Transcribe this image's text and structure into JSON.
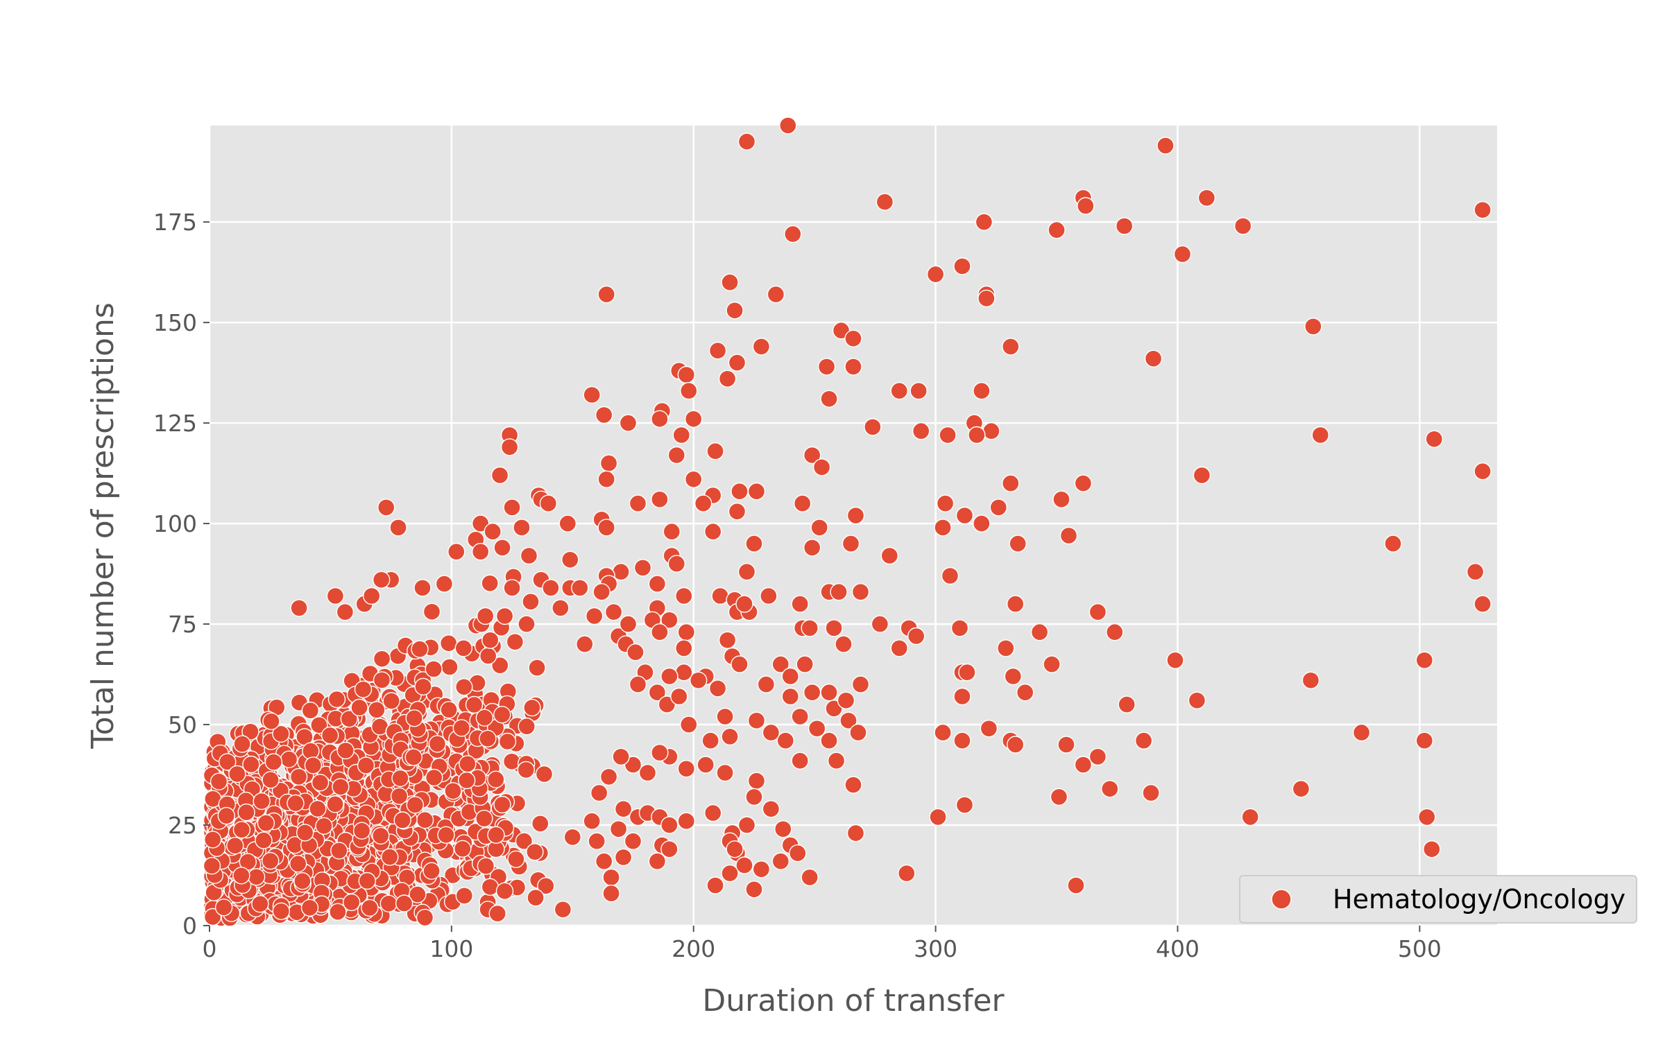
{
  "chart_data": {
    "type": "scatter",
    "xlabel": "Duration of transfer",
    "ylabel": "Total number of prescriptions",
    "xlim": [
      0,
      532
    ],
    "ylim": [
      0,
      199
    ],
    "x_ticks": [
      0,
      100,
      200,
      300,
      400,
      500
    ],
    "y_ticks": [
      0,
      25,
      50,
      75,
      100,
      125,
      150,
      175
    ],
    "grid": true,
    "legend_position": "bottom-right",
    "series": [
      {
        "name": "Hematology/Oncology",
        "color": "#E24A33",
        "points": [
          [
            222,
            195
          ],
          [
            239,
            199
          ],
          [
            395,
            194
          ],
          [
            412,
            181
          ],
          [
            361,
            181
          ],
          [
            362,
            179
          ],
          [
            378,
            174
          ],
          [
            427,
            174
          ],
          [
            350,
            173
          ],
          [
            320,
            175
          ],
          [
            241,
            172
          ],
          [
            526,
            178
          ],
          [
            279,
            180
          ],
          [
            402,
            167
          ],
          [
            311,
            164
          ],
          [
            300,
            162
          ],
          [
            215,
            160
          ],
          [
            234,
            157
          ],
          [
            164,
            157
          ],
          [
            321,
            157
          ],
          [
            321,
            156
          ],
          [
            217,
            153
          ],
          [
            456,
            149
          ],
          [
            390,
            141
          ],
          [
            261,
            148
          ],
          [
            266,
            146
          ],
          [
            228,
            144
          ],
          [
            331,
            144
          ],
          [
            210,
            143
          ],
          [
            218,
            140
          ],
          [
            255,
            139
          ],
          [
            266,
            139
          ],
          [
            194,
            138
          ],
          [
            197,
            137
          ],
          [
            214,
            136
          ],
          [
            285,
            133
          ],
          [
            293,
            133
          ],
          [
            319,
            133
          ],
          [
            198,
            133
          ],
          [
            158,
            132
          ],
          [
            256,
            131
          ],
          [
            163,
            127
          ],
          [
            187,
            128
          ],
          [
            186,
            126
          ],
          [
            200,
            126
          ],
          [
            173,
            125
          ],
          [
            274,
            124
          ],
          [
            294,
            123
          ],
          [
            316,
            125
          ],
          [
            323,
            123
          ],
          [
            317,
            122
          ],
          [
            305,
            122
          ],
          [
            459,
            122
          ],
          [
            506,
            121
          ],
          [
            195,
            122
          ],
          [
            124,
            122
          ],
          [
            124,
            119
          ],
          [
            209,
            118
          ],
          [
            193,
            117
          ],
          [
            249,
            117
          ],
          [
            253,
            114
          ],
          [
            165,
            115
          ],
          [
            526,
            113
          ],
          [
            410,
            112
          ],
          [
            164,
            111
          ],
          [
            200,
            111
          ],
          [
            331,
            110
          ],
          [
            361,
            110
          ],
          [
            120,
            112
          ],
          [
            226,
            108
          ],
          [
            219,
            108
          ],
          [
            208,
            107
          ],
          [
            136,
            107
          ],
          [
            137,
            106
          ],
          [
            140,
            105
          ],
          [
            177,
            105
          ],
          [
            186,
            106
          ],
          [
            245,
            105
          ],
          [
            304,
            105
          ],
          [
            352,
            106
          ],
          [
            204,
            105
          ],
          [
            73,
            104
          ],
          [
            208,
            98
          ],
          [
            326,
            104
          ],
          [
            355,
            97
          ],
          [
            218,
            103
          ],
          [
            162,
            101
          ],
          [
            148,
            100
          ],
          [
            125,
            104
          ],
          [
            112,
            100
          ],
          [
            129,
            99
          ],
          [
            267,
            102
          ],
          [
            312,
            102
          ],
          [
            319,
            100
          ],
          [
            303,
            99
          ],
          [
            252,
            99
          ],
          [
            78,
            99
          ],
          [
            191,
            98
          ],
          [
            164,
            99
          ],
          [
            117,
            98
          ],
          [
            225,
            95
          ],
          [
            249,
            94
          ],
          [
            265,
            95
          ],
          [
            334,
            95
          ],
          [
            489,
            95
          ],
          [
            110,
            96
          ],
          [
            112,
            93
          ],
          [
            102,
            93
          ],
          [
            132,
            92
          ],
          [
            149,
            91
          ],
          [
            191,
            92
          ],
          [
            193,
            90
          ],
          [
            281,
            92
          ],
          [
            121,
            94
          ],
          [
            170,
            88
          ],
          [
            179,
            89
          ],
          [
            222,
            88
          ],
          [
            306,
            87
          ],
          [
            164,
            87
          ],
          [
            185,
            85
          ],
          [
            137,
            86
          ],
          [
            149,
            84
          ],
          [
            153,
            84
          ],
          [
            165,
            85
          ],
          [
            162,
            83
          ],
          [
            125,
            84
          ],
          [
            141,
            84
          ],
          [
            97,
            85
          ],
          [
            88,
            84
          ],
          [
            256,
            83
          ],
          [
            260,
            83
          ],
          [
            231,
            82
          ],
          [
            211,
            82
          ],
          [
            217,
            81
          ],
          [
            218,
            78
          ],
          [
            223,
            78
          ],
          [
            269,
            83
          ],
          [
            523,
            88
          ],
          [
            526,
            80
          ],
          [
            221,
            80
          ],
          [
            244,
            80
          ],
          [
            333,
            80
          ],
          [
            52,
            82
          ],
          [
            56,
            78
          ],
          [
            37,
            79
          ],
          [
            75,
            86
          ],
          [
            71,
            86
          ],
          [
            64,
            80
          ],
          [
            67,
            82
          ],
          [
            185,
            79
          ],
          [
            196,
            82
          ],
          [
            167,
            78
          ],
          [
            169,
            72
          ],
          [
            173,
            75
          ],
          [
            183,
            76
          ],
          [
            190,
            76
          ],
          [
            197,
            73
          ],
          [
            159,
            77
          ],
          [
            145,
            79
          ],
          [
            131,
            75
          ],
          [
            122,
            77
          ],
          [
            116,
            71
          ],
          [
            105,
            69
          ],
          [
            114,
            77
          ],
          [
            367,
            78
          ],
          [
            277,
            75
          ],
          [
            289,
            74
          ],
          [
            292,
            72
          ],
          [
            245,
            74
          ],
          [
            248,
            74
          ],
          [
            258,
            74
          ],
          [
            310,
            74
          ],
          [
            343,
            73
          ],
          [
            374,
            73
          ],
          [
            186,
            73
          ],
          [
            214,
            71
          ],
          [
            216,
            67
          ],
          [
            196,
            69
          ],
          [
            172,
            70
          ],
          [
            176,
            68
          ],
          [
            155,
            70
          ],
          [
            262,
            70
          ],
          [
            285,
            69
          ],
          [
            329,
            69
          ],
          [
            219,
            65
          ],
          [
            230,
            60
          ],
          [
            236,
            65
          ],
          [
            246,
            65
          ],
          [
            240,
            62
          ],
          [
            249,
            58
          ],
          [
            256,
            58
          ],
          [
            258,
            54
          ],
          [
            263,
            56
          ],
          [
            269,
            60
          ],
          [
            311,
            63
          ],
          [
            313,
            63
          ],
          [
            332,
            62
          ],
          [
            337,
            58
          ],
          [
            348,
            65
          ],
          [
            399,
            66
          ],
          [
            455,
            61
          ],
          [
            502,
            66
          ],
          [
            205,
            62
          ],
          [
            210,
            59
          ],
          [
            202,
            61
          ],
          [
            196,
            63
          ],
          [
            190,
            62
          ],
          [
            180,
            63
          ],
          [
            177,
            60
          ],
          [
            185,
            58
          ],
          [
            189,
            55
          ],
          [
            194,
            57
          ],
          [
            198,
            50
          ],
          [
            207,
            46
          ],
          [
            213,
            52
          ],
          [
            215,
            47
          ],
          [
            226,
            51
          ],
          [
            240,
            57
          ],
          [
            244,
            52
          ],
          [
            251,
            49
          ],
          [
            264,
            51
          ],
          [
            268,
            48
          ],
          [
            311,
            57
          ],
          [
            322,
            49
          ],
          [
            331,
            46
          ],
          [
            379,
            55
          ],
          [
            386,
            46
          ],
          [
            408,
            56
          ],
          [
            476,
            48
          ],
          [
            502,
            46
          ],
          [
            259,
            41
          ],
          [
            256,
            46
          ],
          [
            244,
            41
          ],
          [
            238,
            46
          ],
          [
            232,
            48
          ],
          [
            226,
            36
          ],
          [
            213,
            38
          ],
          [
            205,
            40
          ],
          [
            197,
            39
          ],
          [
            190,
            42
          ],
          [
            186,
            43
          ],
          [
            181,
            38
          ],
          [
            175,
            40
          ],
          [
            170,
            42
          ],
          [
            165,
            37
          ],
          [
            161,
            33
          ],
          [
            171,
            29
          ],
          [
            177,
            27
          ],
          [
            181,
            28
          ],
          [
            186,
            27
          ],
          [
            190,
            25
          ],
          [
            197,
            26
          ],
          [
            208,
            28
          ],
          [
            216,
            23
          ],
          [
            218,
            18
          ],
          [
            222,
            25
          ],
          [
            225,
            32
          ],
          [
            232,
            29
          ],
          [
            237,
            24
          ],
          [
            240,
            20
          ],
          [
            236,
            16
          ],
          [
            243,
            18
          ],
          [
            248,
            12
          ],
          [
            266,
            35
          ],
          [
            267,
            23
          ],
          [
            303,
            48
          ],
          [
            311,
            46
          ],
          [
            301,
            27
          ],
          [
            312,
            30
          ],
          [
            333,
            45
          ],
          [
            354,
            45
          ],
          [
            361,
            40
          ],
          [
            367,
            42
          ],
          [
            372,
            34
          ],
          [
            389,
            33
          ],
          [
            351,
            32
          ],
          [
            358,
            10
          ],
          [
            288,
            13
          ],
          [
            225,
            9
          ],
          [
            228,
            14
          ],
          [
            209,
            10
          ],
          [
            215,
            13
          ],
          [
            215,
            21
          ],
          [
            217,
            19
          ],
          [
            221,
            15
          ],
          [
            187,
            20
          ],
          [
            190,
            19
          ],
          [
            185,
            16
          ],
          [
            175,
            21
          ],
          [
            171,
            17
          ],
          [
            169,
            24
          ],
          [
            166,
            12
          ],
          [
            166,
            8
          ],
          [
            163,
            16
          ],
          [
            160,
            21
          ],
          [
            158,
            26
          ],
          [
            150,
            22
          ],
          [
            146,
            4
          ],
          [
            115,
            4
          ],
          [
            430,
            27
          ],
          [
            451,
            34
          ],
          [
            503,
            27
          ],
          [
            505,
            19
          ],
          [
            119,
            3
          ],
          [
            89,
            2
          ]
        ],
        "dense_cluster": {
          "x_range": [
            0,
            150
          ],
          "y_range_at_x0": [
            0,
            45
          ],
          "y_range_at_x150": [
            0,
            100
          ],
          "description_points": 1400
        }
      }
    ]
  }
}
